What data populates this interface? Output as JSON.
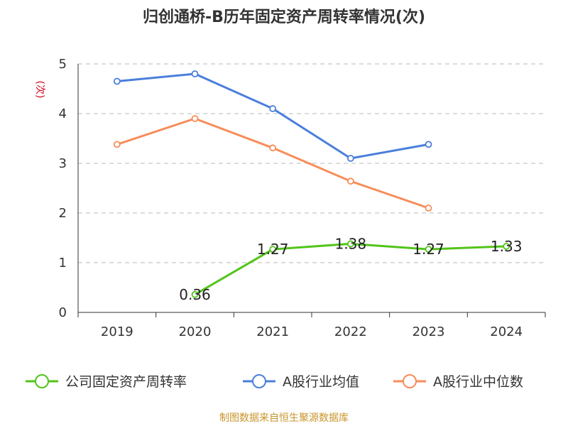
{
  "chart_data": {
    "type": "line",
    "title": "归创通桥-B历年固定资产周转率情况(次)",
    "ylabel": "(次)",
    "xlabel": "",
    "categories": [
      "2019",
      "2020",
      "2021",
      "2022",
      "2023",
      "2024"
    ],
    "ylim": [
      0,
      5
    ],
    "yticks": [
      0,
      1,
      2,
      3,
      4,
      5
    ],
    "grid": true,
    "legend_position": "bottom",
    "series": [
      {
        "name": "公司固定资产周转率",
        "color": "#52c41a",
        "values": [
          null,
          0.36,
          1.27,
          1.38,
          1.27,
          1.33
        ],
        "labels": [
          "",
          "0.36",
          "1.27",
          "1.38",
          "1.27",
          "1.33"
        ]
      },
      {
        "name": "A股行业均值",
        "color": "#4a7fdc",
        "values": [
          4.65,
          4.8,
          4.1,
          3.1,
          3.38,
          null
        ]
      },
      {
        "name": "A股行业中位数",
        "color": "#f78d59",
        "values": [
          3.38,
          3.9,
          3.31,
          2.64,
          2.1,
          null
        ]
      }
    ]
  },
  "footer": "制图数据来自恒生聚源数据库"
}
